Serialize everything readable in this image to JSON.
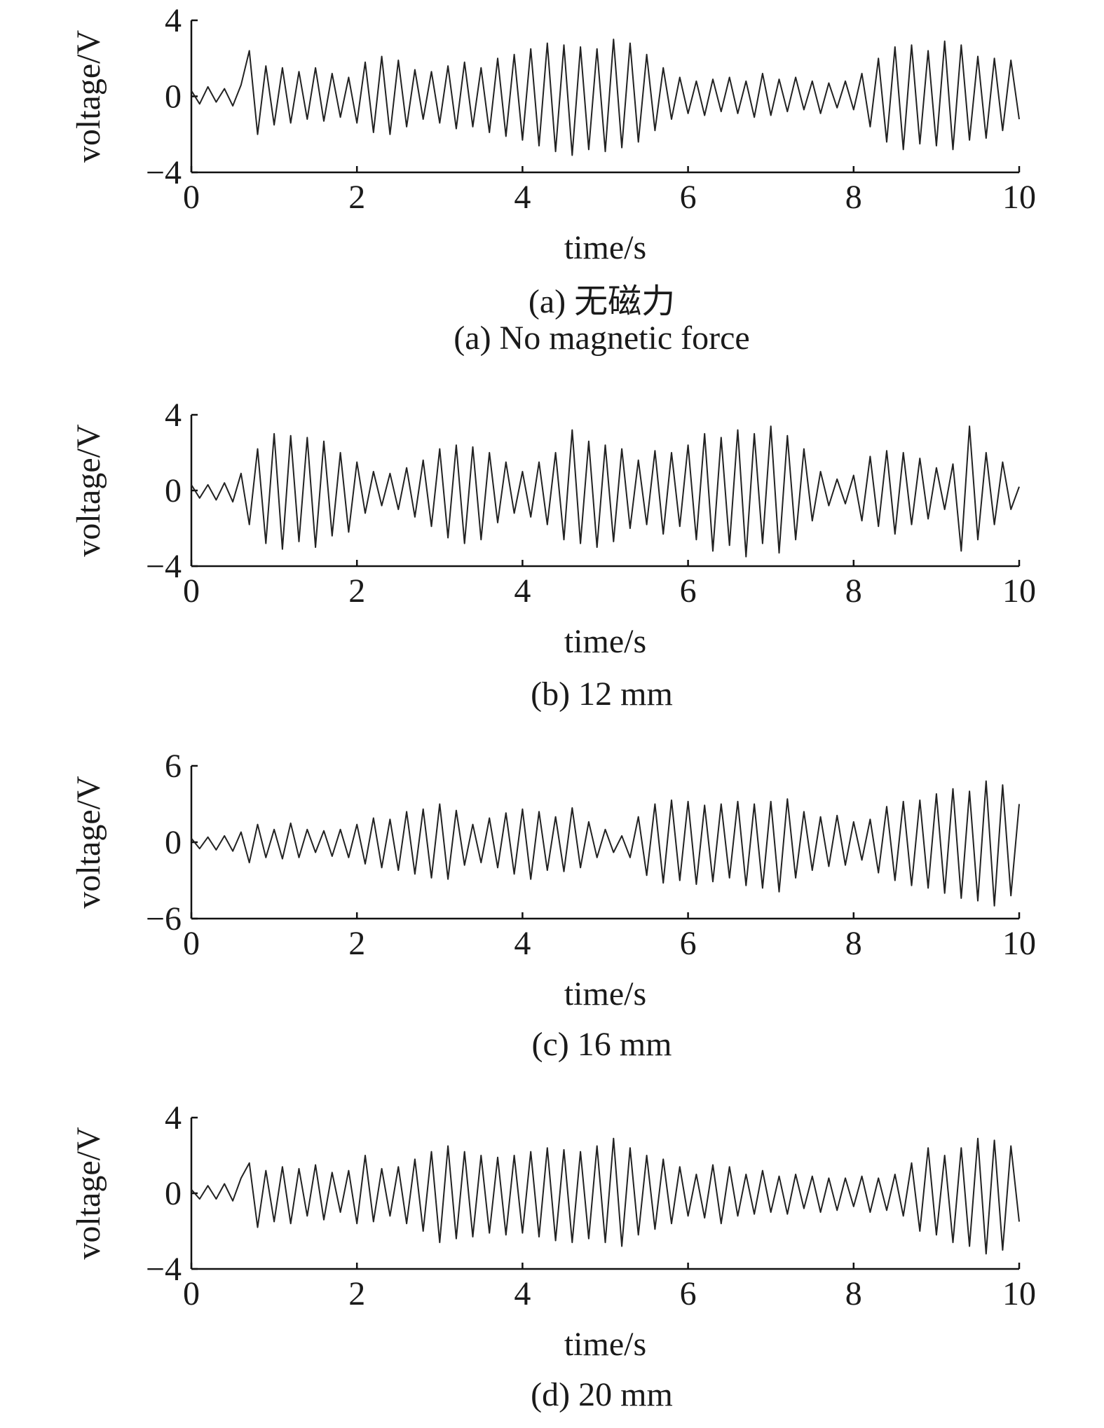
{
  "chart_data": [
    {
      "type": "line",
      "ylabel": "voltage/V",
      "xlabel": "time/s",
      "captions": [
        "(a) 无磁力",
        "(a) No magnetic force"
      ],
      "xlim": [
        0,
        10
      ],
      "xticks": [
        0,
        2,
        4,
        6,
        8,
        10
      ],
      "ylim": [
        -4,
        4
      ],
      "yticks": [
        {
          "value": -4,
          "label": "−4"
        },
        0,
        4
      ],
      "x": [
        0,
        0.1,
        0.2,
        0.3,
        0.4,
        0.5,
        0.6,
        0.7,
        0.8,
        0.9,
        1,
        1.1,
        1.2,
        1.3,
        1.4,
        1.5,
        1.6,
        1.7,
        1.8,
        1.9,
        2,
        2.1,
        2.2,
        2.3,
        2.4,
        2.5,
        2.6,
        2.7,
        2.8,
        2.9,
        3,
        3.1,
        3.2,
        3.3,
        3.4,
        3.5,
        3.6,
        3.7,
        3.8,
        3.9,
        4,
        4.1,
        4.2,
        4.3,
        4.4,
        4.5,
        4.6,
        4.7,
        4.8,
        4.9,
        5,
        5.1,
        5.2,
        5.3,
        5.4,
        5.5,
        5.6,
        5.7,
        5.8,
        5.9,
        6,
        6.1,
        6.2,
        6.3,
        6.4,
        6.5,
        6.6,
        6.7,
        6.8,
        6.9,
        7,
        7.1,
        7.2,
        7.3,
        7.4,
        7.5,
        7.6,
        7.7,
        7.8,
        7.9,
        8,
        8.1,
        8.2,
        8.3,
        8.4,
        8.5,
        8.6,
        8.7,
        8.8,
        8.9,
        9,
        9.1,
        9.2,
        9.3,
        9.4,
        9.5,
        9.6,
        9.7,
        9.8,
        9.9,
        10
      ],
      "series": [
        {
          "color": "#222222",
          "values": [
            0.3,
            -0.4,
            0.5,
            -0.3,
            0.4,
            -0.5,
            0.6,
            2.4,
            -2.0,
            1.6,
            -1.5,
            1.5,
            -1.4,
            1.3,
            -1.2,
            1.5,
            -1.3,
            1.2,
            -1.1,
            1.0,
            -1.4,
            1.8,
            -1.9,
            2.1,
            -2.0,
            1.9,
            -1.6,
            1.4,
            -1.2,
            1.3,
            -1.4,
            1.6,
            -1.7,
            1.8,
            -1.6,
            1.5,
            -1.9,
            2.0,
            -2.1,
            2.2,
            -2.3,
            2.5,
            -2.6,
            2.8,
            -2.9,
            2.7,
            -3.1,
            2.6,
            -2.8,
            2.5,
            -2.9,
            3.0,
            -2.7,
            2.8,
            -2.4,
            2.2,
            -1.8,
            1.5,
            -1.2,
            1.0,
            -0.9,
            0.8,
            -1.0,
            0.9,
            -0.8,
            1.0,
            -0.9,
            0.8,
            -1.1,
            1.2,
            -1.0,
            0.9,
            -0.8,
            1.0,
            -0.7,
            0.8,
            -0.9,
            0.7,
            -0.6,
            0.8,
            -0.7,
            1.2,
            -1.6,
            2.0,
            -2.4,
            2.6,
            -2.8,
            2.7,
            -2.5,
            2.4,
            -2.6,
            2.9,
            -2.8,
            2.7,
            -2.3,
            2.1,
            -2.2,
            2.0,
            -1.8,
            1.9,
            -1.2
          ]
        }
      ]
    },
    {
      "type": "line",
      "ylabel": "voltage/V",
      "xlabel": "time/s",
      "captions": [
        "(b) 12 mm"
      ],
      "xlim": [
        0,
        10
      ],
      "xticks": [
        0,
        2,
        4,
        6,
        8,
        10
      ],
      "ylim": [
        -4,
        4
      ],
      "yticks": [
        {
          "value": -4,
          "label": "−4"
        },
        0,
        4
      ],
      "x": [
        0,
        0.1,
        0.2,
        0.3,
        0.4,
        0.5,
        0.6,
        0.7,
        0.8,
        0.9,
        1,
        1.1,
        1.2,
        1.3,
        1.4,
        1.5,
        1.6,
        1.7,
        1.8,
        1.9,
        2,
        2.1,
        2.2,
        2.3,
        2.4,
        2.5,
        2.6,
        2.7,
        2.8,
        2.9,
        3,
        3.1,
        3.2,
        3.3,
        3.4,
        3.5,
        3.6,
        3.7,
        3.8,
        3.9,
        4,
        4.1,
        4.2,
        4.3,
        4.4,
        4.5,
        4.6,
        4.7,
        4.8,
        4.9,
        5,
        5.1,
        5.2,
        5.3,
        5.4,
        5.5,
        5.6,
        5.7,
        5.8,
        5.9,
        6,
        6.1,
        6.2,
        6.3,
        6.4,
        6.5,
        6.6,
        6.7,
        6.8,
        6.9,
        7,
        7.1,
        7.2,
        7.3,
        7.4,
        7.5,
        7.6,
        7.7,
        7.8,
        7.9,
        8,
        8.1,
        8.2,
        8.3,
        8.4,
        8.5,
        8.6,
        8.7,
        8.8,
        8.9,
        9,
        9.1,
        9.2,
        9.3,
        9.4,
        9.5,
        9.6,
        9.7,
        9.8,
        9.9,
        10
      ],
      "series": [
        {
          "color": "#222222",
          "values": [
            0.3,
            -0.4,
            0.3,
            -0.5,
            0.4,
            -0.6,
            0.9,
            -1.8,
            2.2,
            -2.8,
            3.0,
            -3.1,
            2.9,
            -2.7,
            2.8,
            -3.0,
            2.6,
            -2.4,
            2.0,
            -2.2,
            1.5,
            -1.2,
            1.0,
            -0.8,
            0.9,
            -1.0,
            1.2,
            -1.4,
            1.6,
            -1.9,
            2.2,
            -2.5,
            2.4,
            -2.8,
            2.3,
            -2.6,
            2.0,
            -1.7,
            1.5,
            -1.2,
            1.0,
            -1.4,
            1.5,
            -1.8,
            2.0,
            -2.6,
            3.2,
            -2.8,
            2.6,
            -3.0,
            2.4,
            -2.7,
            2.2,
            -2.0,
            1.6,
            -1.8,
            2.1,
            -2.3,
            2.0,
            -1.9,
            2.4,
            -2.6,
            3.0,
            -3.2,
            2.8,
            -2.9,
            3.2,
            -3.5,
            3.0,
            -2.8,
            3.4,
            -3.3,
            2.9,
            -2.6,
            2.2,
            -1.6,
            1.0,
            -0.8,
            0.6,
            -0.7,
            0.8,
            -1.6,
            1.8,
            -1.9,
            2.1,
            -2.3,
            2.0,
            -1.8,
            1.7,
            -1.5,
            1.2,
            -1.0,
            1.4,
            -3.2,
            3.4,
            -2.6,
            2.0,
            -1.8,
            1.5,
            -1.0,
            0.2
          ]
        }
      ]
    },
    {
      "type": "line",
      "ylabel": "voltage/V",
      "xlabel": "time/s",
      "captions": [
        "(c) 16 mm"
      ],
      "xlim": [
        0,
        10
      ],
      "xticks": [
        0,
        2,
        4,
        6,
        8,
        10
      ],
      "ylim": [
        -6,
        6
      ],
      "yticks": [
        {
          "value": -6,
          "label": "−6"
        },
        0,
        6
      ],
      "x": [
        0,
        0.1,
        0.2,
        0.3,
        0.4,
        0.5,
        0.6,
        0.7,
        0.8,
        0.9,
        1,
        1.1,
        1.2,
        1.3,
        1.4,
        1.5,
        1.6,
        1.7,
        1.8,
        1.9,
        2,
        2.1,
        2.2,
        2.3,
        2.4,
        2.5,
        2.6,
        2.7,
        2.8,
        2.9,
        3,
        3.1,
        3.2,
        3.3,
        3.4,
        3.5,
        3.6,
        3.7,
        3.8,
        3.9,
        4,
        4.1,
        4.2,
        4.3,
        4.4,
        4.5,
        4.6,
        4.7,
        4.8,
        4.9,
        5,
        5.1,
        5.2,
        5.3,
        5.4,
        5.5,
        5.6,
        5.7,
        5.8,
        5.9,
        6,
        6.1,
        6.2,
        6.3,
        6.4,
        6.5,
        6.6,
        6.7,
        6.8,
        6.9,
        7,
        7.1,
        7.2,
        7.3,
        7.4,
        7.5,
        7.6,
        7.7,
        7.8,
        7.9,
        8,
        8.1,
        8.2,
        8.3,
        8.4,
        8.5,
        8.6,
        8.7,
        8.8,
        8.9,
        9,
        9.1,
        9.2,
        9.3,
        9.4,
        9.5,
        9.6,
        9.7,
        9.8,
        9.9,
        10
      ],
      "series": [
        {
          "color": "#222222",
          "values": [
            0.3,
            -0.5,
            0.4,
            -0.6,
            0.5,
            -0.7,
            0.8,
            -1.6,
            1.4,
            -1.2,
            1.0,
            -1.3,
            1.5,
            -1.2,
            1.0,
            -0.8,
            0.9,
            -1.1,
            1.0,
            -1.2,
            1.4,
            -1.7,
            1.9,
            -2.0,
            1.8,
            -2.2,
            2.4,
            -2.5,
            2.6,
            -2.8,
            3.0,
            -2.9,
            2.5,
            -1.8,
            1.4,
            -1.6,
            1.9,
            -2.0,
            2.3,
            -2.5,
            2.6,
            -2.9,
            2.4,
            -2.2,
            2.0,
            -2.3,
            2.7,
            -2.0,
            1.6,
            -1.2,
            1.0,
            -0.8,
            0.5,
            -1.2,
            2.0,
            -2.6,
            3.0,
            -3.2,
            3.3,
            -3.0,
            3.2,
            -3.3,
            2.9,
            -3.1,
            3.0,
            -2.8,
            3.2,
            -3.4,
            3.0,
            -3.6,
            3.2,
            -3.9,
            3.4,
            -2.8,
            2.4,
            -2.2,
            2.0,
            -1.9,
            2.1,
            -1.8,
            1.6,
            -1.4,
            1.8,
            -2.4,
            2.8,
            -3.0,
            3.2,
            -3.4,
            3.3,
            -3.6,
            3.8,
            -4.0,
            4.2,
            -4.4,
            4.0,
            -4.6,
            4.8,
            -5.0,
            4.5,
            -4.2,
            3.0
          ]
        }
      ]
    },
    {
      "type": "line",
      "ylabel": "voltage/V",
      "xlabel": "time/s",
      "captions": [
        "(d) 20 mm"
      ],
      "xlim": [
        0,
        10
      ],
      "xticks": [
        0,
        2,
        4,
        6,
        8,
        10
      ],
      "ylim": [
        -4,
        4
      ],
      "yticks": [
        {
          "value": -4,
          "label": "−4"
        },
        0,
        4
      ],
      "x": [
        0,
        0.1,
        0.2,
        0.3,
        0.4,
        0.5,
        0.6,
        0.7,
        0.8,
        0.9,
        1,
        1.1,
        1.2,
        1.3,
        1.4,
        1.5,
        1.6,
        1.7,
        1.8,
        1.9,
        2,
        2.1,
        2.2,
        2.3,
        2.4,
        2.5,
        2.6,
        2.7,
        2.8,
        2.9,
        3,
        3.1,
        3.2,
        3.3,
        3.4,
        3.5,
        3.6,
        3.7,
        3.8,
        3.9,
        4,
        4.1,
        4.2,
        4.3,
        4.4,
        4.5,
        4.6,
        4.7,
        4.8,
        4.9,
        5,
        5.1,
        5.2,
        5.3,
        5.4,
        5.5,
        5.6,
        5.7,
        5.8,
        5.9,
        6,
        6.1,
        6.2,
        6.3,
        6.4,
        6.5,
        6.6,
        6.7,
        6.8,
        6.9,
        7,
        7.1,
        7.2,
        7.3,
        7.4,
        7.5,
        7.6,
        7.7,
        7.8,
        7.9,
        8,
        8.1,
        8.2,
        8.3,
        8.4,
        8.5,
        8.6,
        8.7,
        8.8,
        8.9,
        9,
        9.1,
        9.2,
        9.3,
        9.4,
        9.5,
        9.6,
        9.7,
        9.8,
        9.9,
        10
      ],
      "series": [
        {
          "color": "#222222",
          "values": [
            0.2,
            -0.3,
            0.4,
            -0.3,
            0.5,
            -0.4,
            0.8,
            1.6,
            -1.8,
            1.2,
            -1.5,
            1.4,
            -1.6,
            1.3,
            -1.2,
            1.5,
            -1.4,
            1.1,
            -1.0,
            1.2,
            -1.6,
            2.0,
            -1.5,
            1.3,
            -1.2,
            1.4,
            -1.6,
            1.8,
            -2.0,
            2.2,
            -2.6,
            2.5,
            -2.4,
            2.2,
            -2.3,
            2.0,
            -2.1,
            1.9,
            -2.2,
            2.0,
            -2.1,
            2.2,
            -2.3,
            2.4,
            -2.5,
            2.3,
            -2.6,
            2.2,
            -2.4,
            2.5,
            -2.6,
            2.9,
            -2.8,
            2.4,
            -2.2,
            2.0,
            -1.9,
            1.8,
            -1.6,
            1.4,
            -1.2,
            1.0,
            -1.3,
            1.5,
            -1.6,
            1.4,
            -1.2,
            1.0,
            -1.1,
            1.2,
            -1.0,
            0.9,
            -1.1,
            1.0,
            -0.8,
            0.9,
            -1.0,
            0.8,
            -0.9,
            0.8,
            -0.7,
            0.9,
            -1.0,
            0.8,
            -0.9,
            1.0,
            -1.2,
            1.6,
            -2.0,
            2.4,
            -2.2,
            2.0,
            -2.6,
            2.4,
            -2.8,
            2.9,
            -3.2,
            2.8,
            -3.0,
            2.5,
            -1.5
          ]
        }
      ]
    }
  ]
}
